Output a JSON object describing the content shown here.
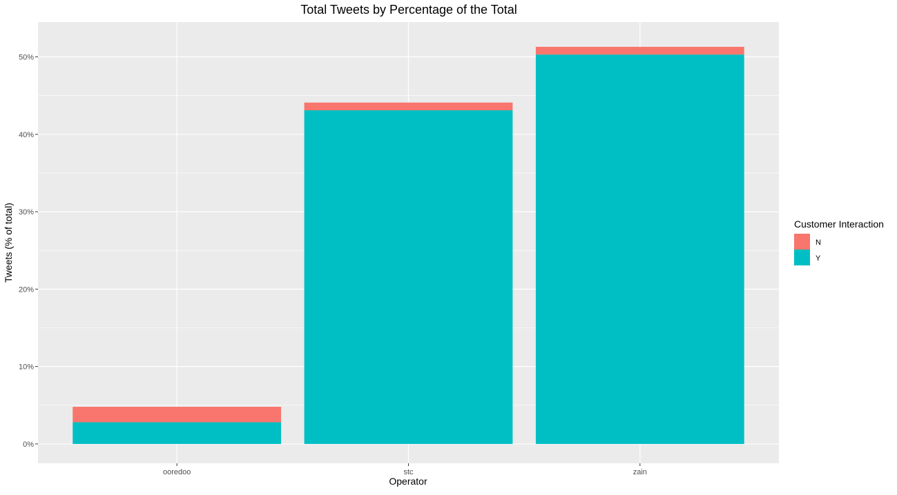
{
  "chart_data": {
    "type": "bar",
    "stacked": true,
    "title": "Total Tweets by Percentage of the Total",
    "xlabel": "Operator",
    "ylabel": "Tweets (% of total)",
    "categories": [
      "ooredoo",
      "stc",
      "zain"
    ],
    "series": [
      {
        "name": "Y",
        "color": "#00BFC4",
        "values": [
          2.8,
          43.1,
          50.3
        ]
      },
      {
        "name": "N",
        "color": "#F8766D",
        "values": [
          2.0,
          1.0,
          1.0
        ]
      }
    ],
    "ylim": [
      -2.5,
      54.5
    ],
    "y_ticks": [
      0,
      10,
      20,
      30,
      40,
      50
    ],
    "y_tick_labels": [
      "0%",
      "10%",
      "20%",
      "30%",
      "40%",
      "50%"
    ],
    "grid": true,
    "legend": {
      "title": "Customer Interaction",
      "position": "right",
      "entries": [
        {
          "label": "N",
          "color": "#F8766D"
        },
        {
          "label": "Y",
          "color": "#00BFC4"
        }
      ]
    },
    "colors": {
      "panel_background": "#EBEBEB",
      "grid": "#FFFFFF"
    }
  }
}
